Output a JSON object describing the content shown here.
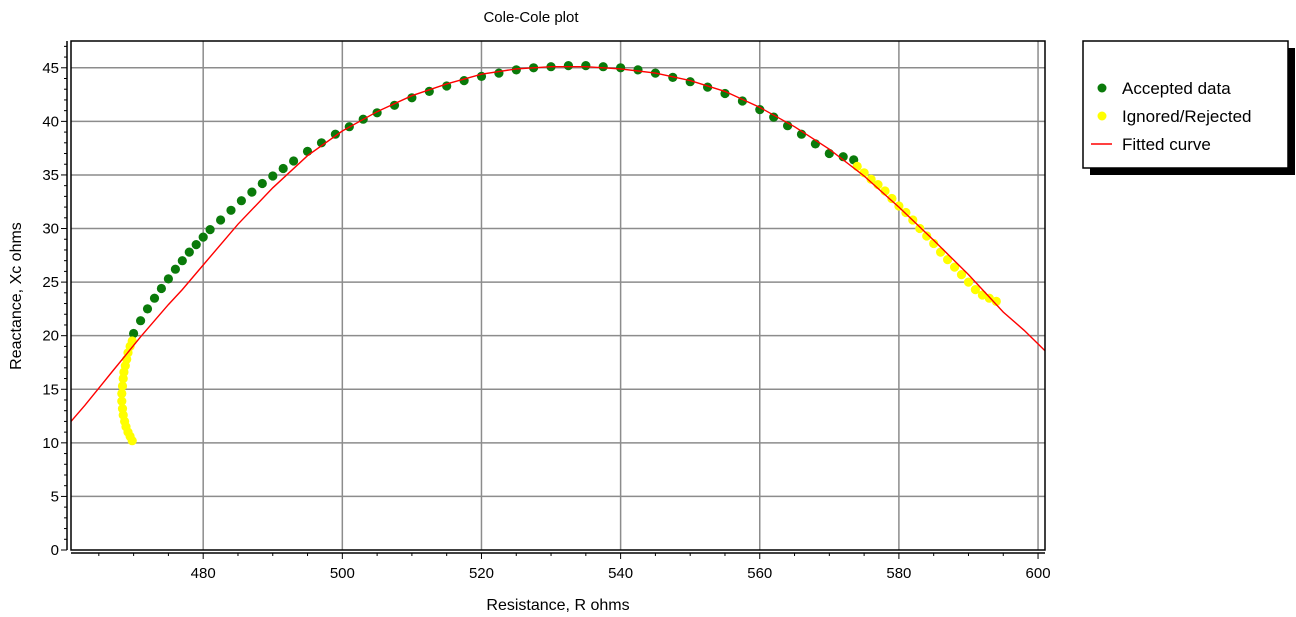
{
  "chart_data": {
    "type": "scatter",
    "title": "Cole-Cole plot",
    "xlabel": "Resistance, R ohms",
    "ylabel": "Reactance, Xc ohms",
    "xlim": [
      461,
      601
    ],
    "ylim": [
      0,
      47.5
    ],
    "xticks": [
      480,
      500,
      520,
      540,
      560,
      580,
      600
    ],
    "yticks": [
      0,
      5,
      10,
      15,
      20,
      25,
      30,
      35,
      40,
      45
    ],
    "grid": true,
    "legend_position": "right",
    "series": [
      {
        "name": "Accepted data",
        "color": "#0a7a0a",
        "marker": "circle",
        "x": [
          470.0,
          471.0,
          472.0,
          473.0,
          474.0,
          475.0,
          476.0,
          477.0,
          478.0,
          479.0,
          480.0,
          481.0,
          482.5,
          484.0,
          485.5,
          487.0,
          488.5,
          490.0,
          491.5,
          493.0,
          495.0,
          497.0,
          499.0,
          501.0,
          503.0,
          505.0,
          507.5,
          510.0,
          512.5,
          515.0,
          517.5,
          520.0,
          522.5,
          525.0,
          527.5,
          530.0,
          532.5,
          535.0,
          537.5,
          540.0,
          542.5,
          545.0,
          547.5,
          550.0,
          552.5,
          555.0,
          557.5,
          560.0,
          562.0,
          564.0,
          566.0,
          568.0,
          570.0,
          572.0,
          573.5
        ],
        "y": [
          20.2,
          21.4,
          22.5,
          23.5,
          24.4,
          25.3,
          26.2,
          27.0,
          27.8,
          28.5,
          29.2,
          29.9,
          30.8,
          31.7,
          32.6,
          33.4,
          34.2,
          34.9,
          35.6,
          36.3,
          37.2,
          38.0,
          38.8,
          39.5,
          40.2,
          40.8,
          41.5,
          42.2,
          42.8,
          43.3,
          43.8,
          44.2,
          44.5,
          44.8,
          45.0,
          45.1,
          45.2,
          45.2,
          45.1,
          45.0,
          44.8,
          44.5,
          44.1,
          43.7,
          43.2,
          42.6,
          41.9,
          41.1,
          40.4,
          39.6,
          38.8,
          37.9,
          37.0,
          36.7,
          36.4
        ]
      },
      {
        "name": "Ignored/Rejected",
        "color": "#ffff00",
        "marker": "circle",
        "x": [
          469.8,
          469.5,
          469.2,
          469.0,
          468.8,
          468.6,
          468.5,
          468.4,
          468.3,
          468.3,
          468.4,
          468.5,
          468.7,
          468.9,
          469.2,
          469.5,
          469.8,
          574.0,
          575.0,
          576.0,
          577.0,
          578.0,
          579.0,
          580.0,
          581.0,
          582.0,
          583.0,
          584.0,
          585.0,
          586.0,
          587.0,
          588.0,
          589.0,
          590.0,
          591.0,
          592.0,
          593.0,
          594.0
        ],
        "y": [
          19.5,
          19.0,
          18.4,
          17.8,
          17.2,
          16.6,
          16.0,
          15.3,
          14.6,
          13.9,
          13.2,
          12.6,
          12.0,
          11.5,
          11.0,
          10.6,
          10.2,
          35.8,
          35.2,
          34.6,
          34.1,
          33.5,
          32.8,
          32.1,
          31.5,
          30.8,
          30.0,
          29.3,
          28.6,
          27.8,
          27.1,
          26.4,
          25.7,
          25.0,
          24.3,
          23.8,
          23.5,
          23.2
        ]
      },
      {
        "name": "Fitted curve",
        "color": "#ff0000",
        "line": true,
        "x": [
          461.0,
          463.0,
          465.0,
          467.0,
          469.0,
          471.0,
          473.0,
          475.0,
          477.0,
          480.0,
          485.0,
          490.0,
          495.0,
          500.0,
          505.0,
          510.0,
          515.0,
          520.0,
          525.0,
          530.0,
          535.0,
          540.0,
          545.0,
          550.0,
          555.0,
          560.0,
          565.0,
          570.0,
          575.0,
          580.0,
          585.0,
          590.0,
          595.0,
          598.0,
          601.0
        ],
        "y": [
          12.0,
          13.5,
          15.1,
          16.7,
          18.3,
          19.9,
          21.4,
          22.9,
          24.3,
          26.6,
          30.4,
          33.8,
          36.8,
          39.1,
          40.9,
          42.4,
          43.5,
          44.4,
          44.9,
          45.1,
          45.1,
          44.9,
          44.5,
          43.8,
          42.8,
          41.3,
          39.5,
          37.4,
          34.9,
          32.0,
          28.9,
          25.7,
          22.2,
          20.5,
          18.6
        ]
      }
    ]
  }
}
